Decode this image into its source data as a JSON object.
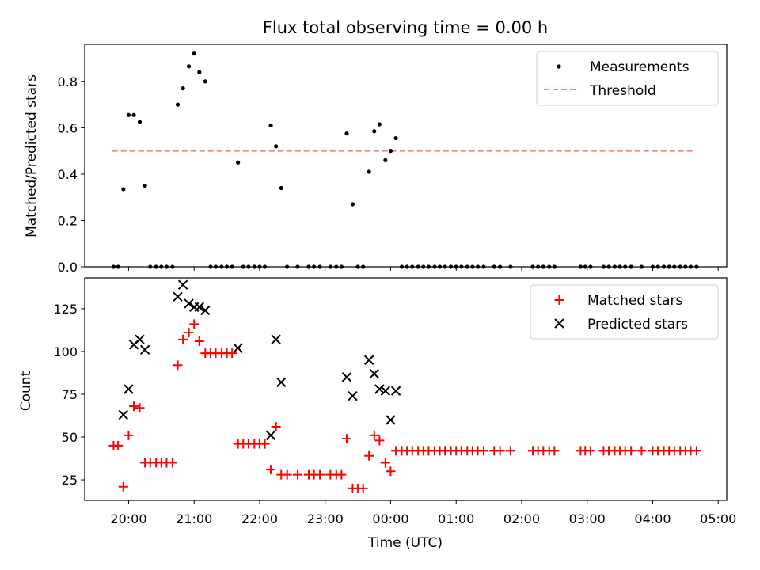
{
  "figure": {
    "title": "Flux total observing time = 0.00 h"
  },
  "chart_data": [
    {
      "type": "scatter",
      "ylabel": "Matched/Predicted stars",
      "xlabel": "",
      "ylim": [
        0,
        0.96
      ],
      "yticks": [
        0.0,
        0.2,
        0.4,
        0.6,
        0.8
      ],
      "ytick_labels": [
        "0.0",
        "0.2",
        "0.4",
        "0.6",
        "0.8"
      ],
      "xlim_hours": [
        19.33,
        29.13
      ],
      "threshold": {
        "value": 0.5,
        "x_start": "19.75",
        "x_end": "28.65",
        "color": "#ff7f7f"
      },
      "legend": {
        "placement": "top-right",
        "entries": [
          {
            "label": "Measurements",
            "marker": "dot",
            "color": "#000000"
          },
          {
            "label": "Threshold",
            "marker": "dashed-line",
            "color": "#ff7f7f"
          }
        ]
      },
      "series": [
        {
          "name": "Measurements",
          "marker": "dot",
          "color": "#000000",
          "points": [
            [
              19.77,
              0.0
            ],
            [
              19.84,
              0.0
            ],
            [
              19.92,
              0.335
            ],
            [
              20.0,
              0.655
            ],
            [
              20.08,
              0.655
            ],
            [
              20.17,
              0.625
            ],
            [
              20.25,
              0.35
            ],
            [
              20.33,
              0.0
            ],
            [
              20.42,
              0.0
            ],
            [
              20.5,
              0.0
            ],
            [
              20.58,
              0.0
            ],
            [
              20.67,
              0.0
            ],
            [
              20.75,
              0.7
            ],
            [
              20.83,
              0.77
            ],
            [
              20.92,
              0.865
            ],
            [
              21.0,
              0.92
            ],
            [
              21.08,
              0.84
            ],
            [
              21.17,
              0.8
            ],
            [
              21.25,
              0.0
            ],
            [
              21.33,
              0.0
            ],
            [
              21.42,
              0.0
            ],
            [
              21.5,
              0.0
            ],
            [
              21.58,
              0.0
            ],
            [
              21.67,
              0.45
            ],
            [
              21.75,
              0.0
            ],
            [
              21.83,
              0.0
            ],
            [
              21.92,
              0.0
            ],
            [
              22.0,
              0.0
            ],
            [
              22.08,
              0.0
            ],
            [
              22.17,
              0.61
            ],
            [
              22.25,
              0.52
            ],
            [
              22.33,
              0.34
            ],
            [
              22.42,
              0.0
            ],
            [
              22.58,
              0.0
            ],
            [
              22.75,
              0.0
            ],
            [
              22.83,
              0.0
            ],
            [
              22.92,
              0.0
            ],
            [
              23.08,
              0.0
            ],
            [
              23.17,
              0.0
            ],
            [
              23.25,
              0.0
            ],
            [
              23.33,
              0.575
            ],
            [
              23.42,
              0.27
            ],
            [
              23.5,
              0.0
            ],
            [
              23.58,
              0.0
            ],
            [
              23.67,
              0.41
            ],
            [
              23.75,
              0.585
            ],
            [
              23.83,
              0.615
            ],
            [
              23.92,
              0.46
            ],
            [
              24.0,
              0.5
            ],
            [
              24.08,
              0.555
            ],
            [
              24.17,
              0.0
            ],
            [
              24.25,
              0.0
            ],
            [
              24.33,
              0.0
            ],
            [
              24.42,
              0.0
            ],
            [
              24.5,
              0.0
            ],
            [
              24.58,
              0.0
            ],
            [
              24.67,
              0.0
            ],
            [
              24.75,
              0.0
            ],
            [
              24.83,
              0.0
            ],
            [
              24.92,
              0.0
            ],
            [
              25.0,
              0.0
            ],
            [
              25.08,
              0.0
            ],
            [
              25.17,
              0.0
            ],
            [
              25.25,
              0.0
            ],
            [
              25.33,
              0.0
            ],
            [
              25.42,
              0.0
            ],
            [
              25.58,
              0.0
            ],
            [
              25.67,
              0.0
            ],
            [
              25.83,
              0.0
            ],
            [
              26.17,
              0.0
            ],
            [
              26.25,
              0.0
            ],
            [
              26.33,
              0.0
            ],
            [
              26.42,
              0.0
            ],
            [
              26.5,
              0.0
            ],
            [
              26.9,
              0.0
            ],
            [
              26.97,
              0.0
            ],
            [
              27.05,
              0.0
            ],
            [
              27.25,
              0.0
            ],
            [
              27.33,
              0.0
            ],
            [
              27.42,
              0.0
            ],
            [
              27.5,
              0.0
            ],
            [
              27.58,
              0.0
            ],
            [
              27.67,
              0.0
            ],
            [
              27.83,
              0.0
            ],
            [
              28.0,
              0.0
            ],
            [
              28.08,
              0.0
            ],
            [
              28.17,
              0.0
            ],
            [
              28.25,
              0.0
            ],
            [
              28.33,
              0.0
            ],
            [
              28.42,
              0.0
            ],
            [
              28.5,
              0.0
            ],
            [
              28.58,
              0.0
            ],
            [
              28.67,
              0.0
            ]
          ]
        }
      ]
    },
    {
      "type": "scatter",
      "ylabel": "Count",
      "xlabel": "Time (UTC)",
      "ylim": [
        13,
        143
      ],
      "yticks": [
        25,
        50,
        75,
        100,
        125
      ],
      "ytick_labels": [
        "25",
        "50",
        "75",
        "100",
        "125"
      ],
      "xlim_hours": [
        19.33,
        29.13
      ],
      "xticks_hours": [
        20,
        21,
        22,
        23,
        24,
        25,
        26,
        27,
        28,
        29
      ],
      "xtick_labels": [
        "20:00",
        "21:00",
        "22:00",
        "23:00",
        "00:00",
        "01:00",
        "02:00",
        "03:00",
        "04:00",
        "05:00"
      ],
      "legend": {
        "placement": "top-right",
        "entries": [
          {
            "label": "Matched stars",
            "marker": "plus",
            "color": "#ff0000"
          },
          {
            "label": "Predicted stars",
            "marker": "x",
            "color": "#000000"
          }
        ]
      },
      "series": [
        {
          "name": "Matched stars",
          "marker": "plus",
          "color": "#ff0000",
          "points": [
            [
              19.77,
              45
            ],
            [
              19.84,
              45
            ],
            [
              19.92,
              21
            ],
            [
              20.0,
              51
            ],
            [
              20.08,
              68
            ],
            [
              20.17,
              67
            ],
            [
              20.25,
              35
            ],
            [
              20.33,
              35
            ],
            [
              20.42,
              35
            ],
            [
              20.5,
              35
            ],
            [
              20.58,
              35
            ],
            [
              20.67,
              35
            ],
            [
              20.75,
              92
            ],
            [
              20.83,
              107
            ],
            [
              20.92,
              111
            ],
            [
              21.0,
              116
            ],
            [
              21.08,
              106
            ],
            [
              21.17,
              99
            ],
            [
              21.25,
              99
            ],
            [
              21.33,
              99
            ],
            [
              21.42,
              99
            ],
            [
              21.5,
              99
            ],
            [
              21.58,
              99
            ],
            [
              21.67,
              46
            ],
            [
              21.75,
              46
            ],
            [
              21.83,
              46
            ],
            [
              21.92,
              46
            ],
            [
              22.0,
              46
            ],
            [
              22.08,
              46
            ],
            [
              22.17,
              31
            ],
            [
              22.25,
              56
            ],
            [
              22.33,
              28
            ],
            [
              22.42,
              28
            ],
            [
              22.58,
              28
            ],
            [
              22.75,
              28
            ],
            [
              22.83,
              28
            ],
            [
              22.92,
              28
            ],
            [
              23.08,
              28
            ],
            [
              23.17,
              28
            ],
            [
              23.25,
              28
            ],
            [
              23.33,
              49
            ],
            [
              23.42,
              20
            ],
            [
              23.5,
              20
            ],
            [
              23.58,
              20
            ],
            [
              23.67,
              39
            ],
            [
              23.75,
              51
            ],
            [
              23.83,
              48
            ],
            [
              23.92,
              35
            ],
            [
              24.0,
              30
            ],
            [
              24.08,
              42
            ],
            [
              24.17,
              42
            ],
            [
              24.25,
              42
            ],
            [
              24.33,
              42
            ],
            [
              24.42,
              42
            ],
            [
              24.5,
              42
            ],
            [
              24.58,
              42
            ],
            [
              24.67,
              42
            ],
            [
              24.75,
              42
            ],
            [
              24.83,
              42
            ],
            [
              24.92,
              42
            ],
            [
              25.0,
              42
            ],
            [
              25.08,
              42
            ],
            [
              25.17,
              42
            ],
            [
              25.25,
              42
            ],
            [
              25.33,
              42
            ],
            [
              25.42,
              42
            ],
            [
              25.58,
              42
            ],
            [
              25.67,
              42
            ],
            [
              25.83,
              42
            ],
            [
              26.17,
              42
            ],
            [
              26.25,
              42
            ],
            [
              26.33,
              42
            ],
            [
              26.42,
              42
            ],
            [
              26.5,
              42
            ],
            [
              26.9,
              42
            ],
            [
              26.97,
              42
            ],
            [
              27.05,
              42
            ],
            [
              27.25,
              42
            ],
            [
              27.33,
              42
            ],
            [
              27.42,
              42
            ],
            [
              27.5,
              42
            ],
            [
              27.58,
              42
            ],
            [
              27.67,
              42
            ],
            [
              27.83,
              42
            ],
            [
              28.0,
              42
            ],
            [
              28.08,
              42
            ],
            [
              28.17,
              42
            ],
            [
              28.25,
              42
            ],
            [
              28.33,
              42
            ],
            [
              28.42,
              42
            ],
            [
              28.5,
              42
            ],
            [
              28.58,
              42
            ],
            [
              28.67,
              42
            ]
          ]
        },
        {
          "name": "Predicted stars",
          "marker": "x",
          "color": "#000000",
          "points": [
            [
              19.92,
              63
            ],
            [
              20.0,
              78
            ],
            [
              20.08,
              104
            ],
            [
              20.17,
              107
            ],
            [
              20.25,
              101
            ],
            [
              20.75,
              132
            ],
            [
              20.83,
              139
            ],
            [
              20.92,
              128
            ],
            [
              21.0,
              126
            ],
            [
              21.08,
              126
            ],
            [
              21.17,
              124
            ],
            [
              21.67,
              102
            ],
            [
              22.17,
              51
            ],
            [
              22.25,
              107
            ],
            [
              22.33,
              82
            ],
            [
              23.33,
              85
            ],
            [
              23.42,
              74
            ],
            [
              23.67,
              95
            ],
            [
              23.75,
              87
            ],
            [
              23.83,
              78
            ],
            [
              23.92,
              77
            ],
            [
              24.0,
              60
            ],
            [
              24.08,
              77
            ]
          ]
        }
      ]
    }
  ]
}
